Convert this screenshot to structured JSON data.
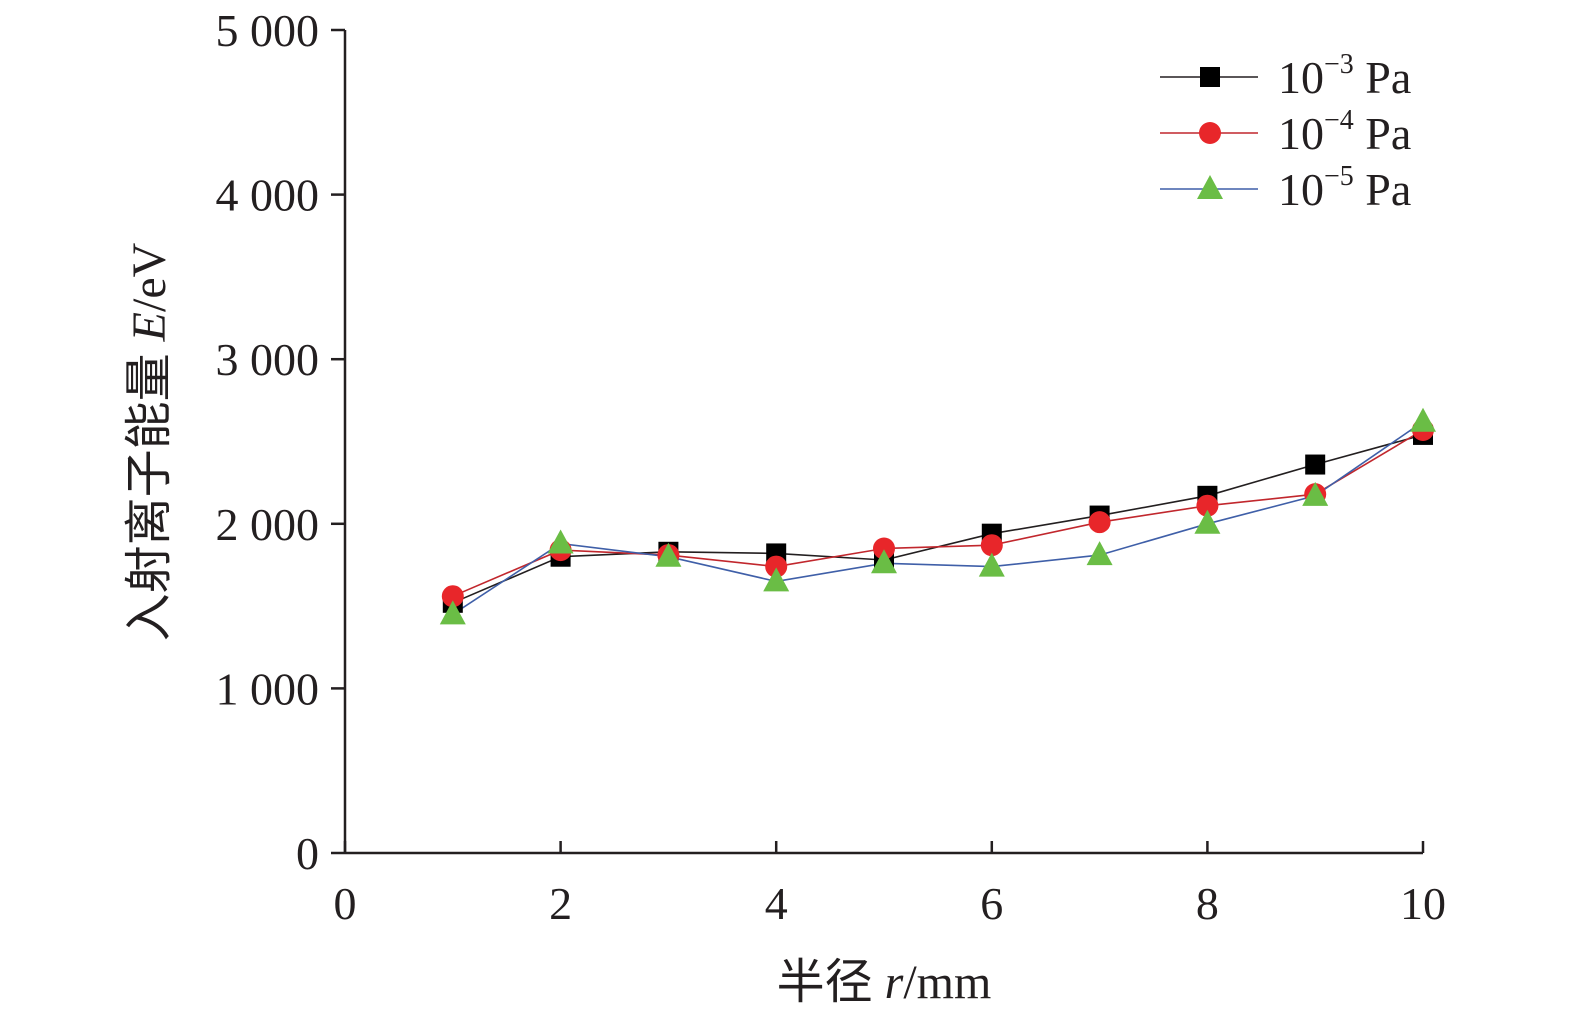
{
  "chart_data": {
    "type": "line",
    "title": "",
    "xlabel": {
      "prefix": "半径 ",
      "var": "r",
      "suffix": "/mm"
    },
    "ylabel": {
      "prefix": "入射离子能量 ",
      "var": "E",
      "suffix": "/eV"
    },
    "xlim": [
      0,
      10
    ],
    "ylim": [
      0,
      5000
    ],
    "x_ticks": [
      0,
      2,
      4,
      6,
      8,
      10
    ],
    "x_tick_labels": [
      "0",
      "2",
      "4",
      "6",
      "8",
      "10"
    ],
    "y_ticks": [
      0,
      1000,
      2000,
      3000,
      4000,
      5000
    ],
    "y_tick_labels": [
      "0",
      "1 000",
      "2 000",
      "3 000",
      "4 000",
      "5 000"
    ],
    "grid": false,
    "legend_position": "top-right",
    "x": [
      1,
      2,
      3,
      4,
      5,
      6,
      7,
      8,
      9,
      10
    ],
    "series": [
      {
        "name": "10−3 Pa",
        "label_base": "10",
        "label_exp": "−3",
        "label_unit": " Pa",
        "marker": "square",
        "marker_color": "#000000",
        "line_color": "#231f20",
        "values": [
          1520,
          1800,
          1830,
          1820,
          1780,
          1940,
          2050,
          2170,
          2360,
          2540
        ]
      },
      {
        "name": "10−4 Pa",
        "label_base": "10",
        "label_exp": "−4",
        "label_unit": " Pa",
        "marker": "circle",
        "marker_color": "#e8262a",
        "line_color": "#c1272d",
        "values": [
          1560,
          1840,
          1810,
          1740,
          1850,
          1870,
          2010,
          2110,
          2180,
          2570
        ]
      },
      {
        "name": "10−5 Pa",
        "label_base": "10",
        "label_exp": "−5",
        "label_unit": " Pa",
        "marker": "triangle",
        "marker_color": "#6abd45",
        "line_color": "#3f5fa8",
        "values": [
          1450,
          1880,
          1800,
          1650,
          1760,
          1740,
          1810,
          2000,
          2170,
          2620
        ]
      }
    ]
  }
}
